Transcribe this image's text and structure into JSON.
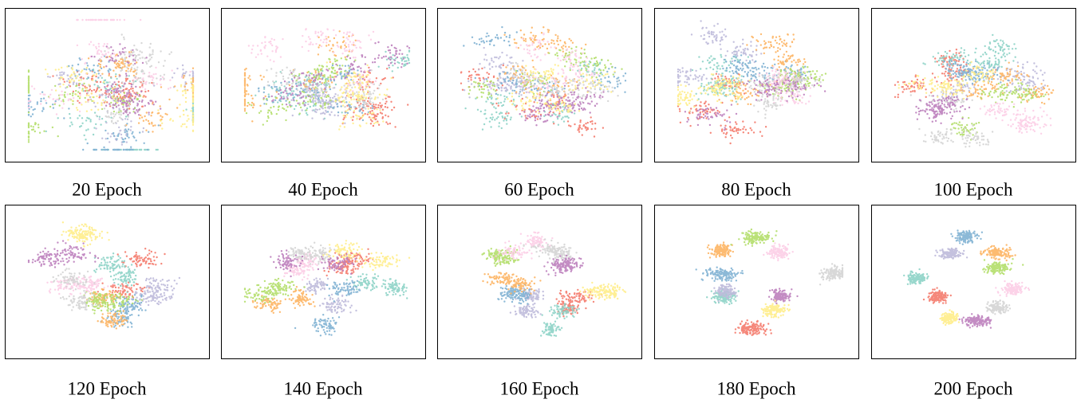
{
  "panels": [
    {
      "caption": "20 Epoch"
    },
    {
      "caption": "40 Epoch"
    },
    {
      "caption": "60 Epoch"
    },
    {
      "caption": "80 Epoch"
    },
    {
      "caption": "100 Epoch"
    },
    {
      "caption": "120 Epoch"
    },
    {
      "caption": "140 Epoch"
    },
    {
      "caption": "160 Epoch"
    },
    {
      "caption": "180 Epoch"
    },
    {
      "caption": "200 Epoch"
    }
  ]
}
